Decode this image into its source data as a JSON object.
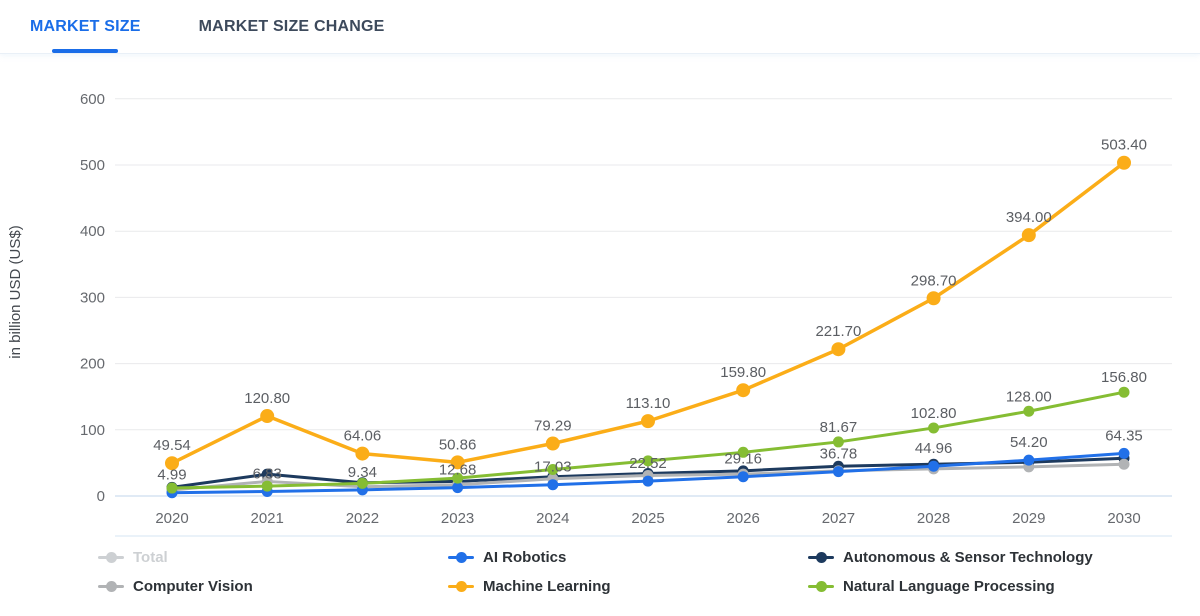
{
  "tabs": [
    {
      "label": "MARKET SIZE",
      "active": true
    },
    {
      "label": "MARKET SIZE CHANGE",
      "active": false
    }
  ],
  "colors": {
    "accent_blue": "#1a6de8",
    "gridline": "#e9eaec",
    "axis_line": "#d6e4f2",
    "bottom_line": "#e4eef7",
    "tick_text": "#66696e",
    "data_label_text": "#5b5e63",
    "legend_text": "#2d3237"
  },
  "chart_data": {
    "type": "line",
    "title": "",
    "ylabel": "in billion USD (US$)",
    "x_categories": [
      "2020",
      "2021",
      "2022",
      "2023",
      "2024",
      "2025",
      "2026",
      "2027",
      "2028",
      "2029",
      "2030"
    ],
    "y_ticks": [
      0,
      100,
      200,
      300,
      400,
      500,
      600
    ],
    "ylim": [
      0,
      600
    ],
    "grid": true,
    "legend_position": "bottom",
    "draw_order": [
      "Autonomous & Sensor Technology",
      "Computer Vision",
      "AI Robotics",
      "Natural Language Processing",
      "Machine Learning"
    ],
    "series": [
      {
        "name": "Total",
        "color": "#cdd0d3",
        "visible": false,
        "values": null,
        "labels": null
      },
      {
        "name": "Computer Vision",
        "color": "#b1b3b5",
        "visible": true,
        "estimated": true,
        "values": [
          9,
          22,
          14,
          17,
          26,
          31,
          33,
          38,
          41,
          44,
          48
        ],
        "labels": null
      },
      {
        "name": "AI Robotics",
        "color": "#2170e8",
        "visible": true,
        "values": [
          4.99,
          6.83,
          9.34,
          12.68,
          17.03,
          22.52,
          29.16,
          36.78,
          44.96,
          54.2,
          64.35
        ],
        "labels": [
          "4.99",
          "6.83",
          "9.34",
          "12.68",
          "17.03",
          "22.52",
          "29.16",
          "36.78",
          "44.96",
          "54.20",
          "64.35"
        ]
      },
      {
        "name": "Machine Learning",
        "color": "#fbad18",
        "visible": true,
        "values": [
          49.54,
          120.8,
          64.06,
          50.86,
          79.29,
          113.1,
          159.8,
          221.7,
          298.7,
          394.0,
          503.4
        ],
        "labels": [
          "49.54",
          "120.80",
          "64.06",
          "50.86",
          "79.29",
          "113.10",
          "159.80",
          "221.70",
          "298.70",
          "394.00",
          "503.40"
        ]
      },
      {
        "name": "Autonomous & Sensor Technology",
        "color": "#1d3a5e",
        "visible": true,
        "estimated": true,
        "values": [
          13,
          33,
          20,
          22,
          29,
          34,
          38,
          45,
          48,
          51,
          57
        ],
        "labels": null
      },
      {
        "name": "Natural Language Processing",
        "color": "#85bd33",
        "visible": true,
        "estimated_before_2027": true,
        "values": [
          12,
          15,
          19,
          27,
          40,
          53,
          66,
          81.67,
          102.8,
          128.0,
          156.8
        ],
        "labels": [
          null,
          null,
          null,
          null,
          null,
          null,
          null,
          "81.67",
          "102.80",
          "128.00",
          "156.80"
        ]
      }
    ]
  },
  "legend": {
    "items": [
      {
        "label": "Total",
        "color": "#cdd0d3",
        "disabled": true
      },
      {
        "label": "AI Robotics",
        "color": "#2170e8",
        "disabled": false
      },
      {
        "label": "Autonomous & Sensor Technology",
        "color": "#1d3a5e",
        "disabled": false
      },
      {
        "label": "Computer Vision",
        "color": "#b1b3b5",
        "disabled": false
      },
      {
        "label": "Machine Learning",
        "color": "#fbad18",
        "disabled": false
      },
      {
        "label": "Natural Language Processing",
        "color": "#85bd33",
        "disabled": false
      }
    ]
  }
}
